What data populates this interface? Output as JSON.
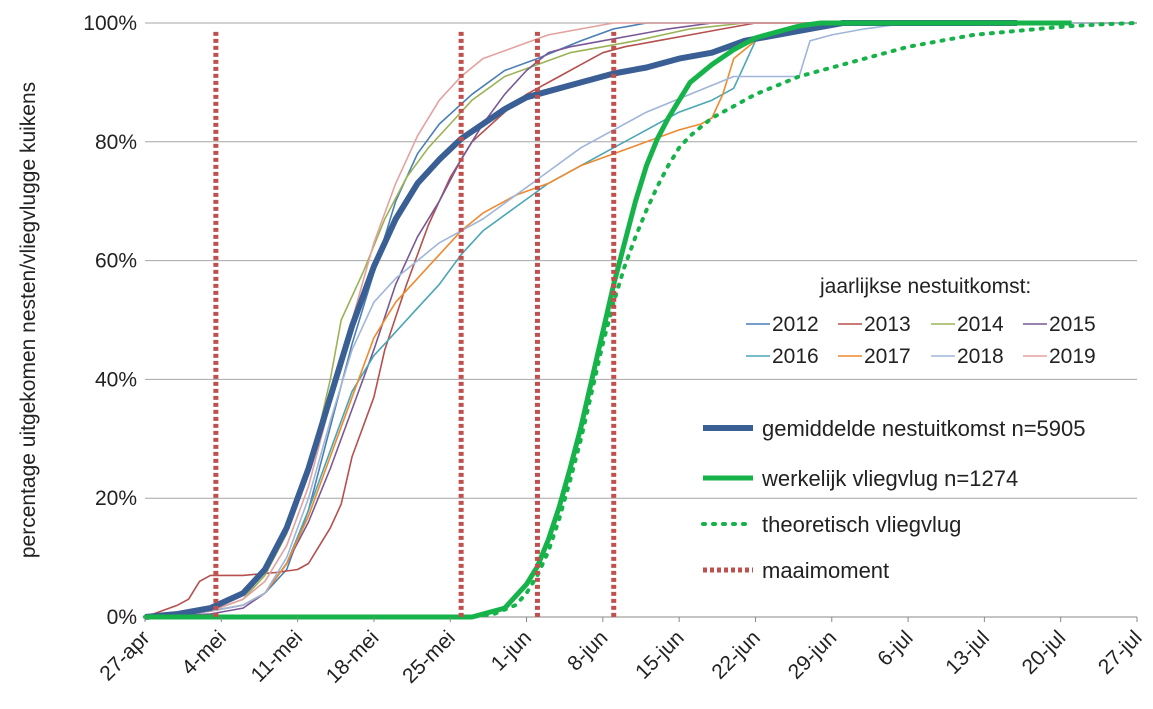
{
  "chart_data": {
    "type": "line",
    "ylabel": "percentage uitgekomen nesten/vliegvlugge kuikens",
    "xlabel": "",
    "x_ticks": [
      "27-apr",
      "4-mei",
      "11-mei",
      "18-mei",
      "25-mei",
      "1-jun",
      "8-jun",
      "15-jun",
      "22-jun",
      "29-jun",
      "6-jul",
      "13-jul",
      "20-jul",
      "27-jul"
    ],
    "y_ticks": [
      "0%",
      "20%",
      "40%",
      "60%",
      "80%",
      "100%"
    ],
    "xlim": [
      0,
      91
    ],
    "ylim": [
      0,
      100
    ],
    "x_unit_note": "",
    "legend_title": "jaarlijkse nestuitkomst:",
    "series": [
      {
        "name": "2012",
        "color": "#4a7eb5",
        "width": 1.6,
        "dash": "",
        "x": [
          0,
          3,
          6,
          9,
          11,
          13,
          15,
          17,
          19,
          21,
          23,
          25,
          27,
          30,
          33,
          36,
          40,
          43,
          46,
          50,
          55,
          60,
          70,
          80
        ],
        "y": [
          0,
          0.3,
          1,
          2,
          4,
          8,
          18,
          32,
          46,
          58,
          70,
          78,
          83,
          88,
          92,
          94,
          97,
          99,
          100,
          100,
          100,
          100,
          100,
          100
        ]
      },
      {
        "name": "2013",
        "color": "#b5504e",
        "width": 1.6,
        "dash": "",
        "x": [
          0,
          3,
          4,
          5,
          6,
          9,
          12,
          14,
          15,
          16,
          17,
          18,
          19,
          21,
          22,
          24,
          26,
          28,
          30,
          33,
          35,
          38,
          40,
          42,
          44,
          47,
          50,
          53,
          56,
          60,
          70,
          80
        ],
        "y": [
          0,
          2,
          3,
          6,
          7,
          7,
          7.5,
          8,
          9,
          12,
          15,
          19,
          27,
          37,
          45,
          56,
          66,
          74,
          80,
          85,
          88,
          91,
          93,
          95,
          96,
          97,
          98,
          99,
          100,
          100,
          100,
          100
        ]
      },
      {
        "name": "2014",
        "color": "#9bb356",
        "width": 1.6,
        "dash": "",
        "x": [
          0,
          3,
          6,
          9,
          11,
          13,
          14,
          16,
          17,
          18,
          20,
          22,
          24,
          26,
          28,
          30,
          33,
          36,
          39,
          42,
          45,
          50,
          55,
          60,
          70,
          80
        ],
        "y": [
          0,
          0.5,
          1,
          3,
          7,
          14,
          20,
          32,
          40,
          50,
          58,
          67,
          74,
          79,
          83,
          87,
          91,
          93,
          95,
          96,
          97,
          99,
          100,
          100,
          100,
          100
        ]
      },
      {
        "name": "2015",
        "color": "#7a5896",
        "width": 1.6,
        "dash": "",
        "x": [
          0,
          3,
          6,
          9,
          11,
          13,
          15,
          17,
          19,
          21,
          23,
          25,
          27,
          29,
          31,
          33,
          35,
          37,
          39,
          42,
          45,
          48,
          52,
          55,
          60,
          70,
          80
        ],
        "y": [
          0,
          0.3,
          0.5,
          1.5,
          4,
          9,
          16,
          25,
          35,
          45,
          56,
          64,
          70,
          77,
          83,
          88,
          92,
          95,
          96,
          97,
          98,
          99,
          100,
          100,
          100,
          100,
          100
        ]
      },
      {
        "name": "2016",
        "color": "#4aa6b5",
        "width": 1.6,
        "dash": "",
        "x": [
          0,
          3,
          6,
          9,
          11,
          13,
          15,
          17,
          19,
          21,
          23,
          25,
          27,
          29,
          31,
          34,
          37,
          40,
          43,
          46,
          49,
          52,
          54,
          55,
          56,
          57,
          60,
          63,
          66,
          70,
          80,
          91
        ],
        "y": [
          0,
          0.3,
          1,
          2,
          4,
          9,
          18,
          28,
          38,
          44,
          48,
          52,
          56,
          61,
          65,
          69,
          73,
          76,
          79,
          82,
          85,
          87,
          89,
          93,
          97,
          98,
          99,
          100,
          100,
          100,
          100,
          100
        ]
      },
      {
        "name": "2017",
        "color": "#ef8a2f",
        "width": 1.6,
        "dash": "",
        "x": [
          0,
          3,
          6,
          9,
          11,
          13,
          15,
          17,
          19,
          21,
          23,
          25,
          27,
          29,
          31,
          34,
          37,
          40,
          43,
          46,
          49,
          51,
          52,
          53,
          54,
          56,
          59,
          62,
          66,
          70,
          80,
          91
        ],
        "y": [
          0,
          0.3,
          1,
          2,
          4,
          9,
          17,
          27,
          37,
          47,
          53,
          57,
          61,
          65,
          68,
          71,
          73,
          76,
          78,
          80,
          82,
          83,
          84,
          88,
          94,
          97,
          99,
          100,
          100,
          100,
          100,
          100
        ]
      },
      {
        "name": "2018",
        "color": "#9fb6d9",
        "width": 1.6,
        "dash": "",
        "x": [
          0,
          3,
          6,
          9,
          11,
          13,
          15,
          17,
          19,
          21,
          23,
          25,
          27,
          29,
          31,
          34,
          37,
          40,
          43,
          46,
          50,
          54,
          57,
          59,
          60,
          61,
          63,
          66,
          70,
          75,
          80,
          91
        ],
        "y": [
          0,
          0.3,
          1,
          2,
          4,
          10,
          20,
          33,
          45,
          53,
          57,
          60,
          63,
          65,
          67,
          71,
          75,
          79,
          82,
          85,
          88,
          91,
          91,
          91,
          91,
          97,
          98,
          99,
          100,
          100,
          100,
          100
        ]
      },
      {
        "name": "2019",
        "color": "#e3a2a0",
        "width": 1.6,
        "dash": "",
        "x": [
          0,
          3,
          6,
          9,
          11,
          13,
          15,
          17,
          19,
          21,
          23,
          25,
          27,
          29,
          31,
          34,
          37,
          40,
          43,
          46,
          50,
          55,
          60,
          70,
          80
        ],
        "y": [
          0,
          0.5,
          1,
          3,
          6,
          12,
          22,
          36,
          50,
          63,
          73,
          81,
          87,
          91,
          94,
          96,
          98,
          99,
          100,
          100,
          100,
          100,
          100,
          100,
          100
        ]
      },
      {
        "name": "gemiddelde nestuitkomst n=5905",
        "color": "#3a5f94",
        "width": 6,
        "dash": "",
        "x": [
          0,
          3,
          6,
          9,
          11,
          13,
          15,
          17,
          19,
          21,
          23,
          25,
          27,
          29,
          31,
          33,
          35,
          37,
          40,
          43,
          46,
          49,
          52,
          55,
          58,
          61,
          64,
          67,
          70,
          80
        ],
        "y": [
          0,
          0.5,
          1.5,
          4,
          8,
          15,
          25,
          37,
          49,
          59,
          67,
          73,
          77,
          80.5,
          83,
          85.5,
          87.5,
          88.5,
          90,
          91.5,
          92.5,
          94,
          95,
          97,
          98,
          99,
          100,
          100,
          100,
          100
        ]
      },
      {
        "name": "werkelijk vliegvlug n=1274",
        "color": "#16b34a",
        "width": 5,
        "dash": "",
        "x": [
          0,
          10,
          20,
          30,
          33,
          34,
          35,
          36,
          37,
          38,
          39,
          40,
          41,
          42,
          43,
          44,
          45,
          46,
          47,
          48,
          49,
          50,
          52,
          54,
          56,
          58,
          60,
          62,
          64,
          67,
          70,
          75,
          80,
          85
        ],
        "y": [
          0,
          0,
          0,
          0,
          1.5,
          3.5,
          5.5,
          8.5,
          13,
          18.5,
          25,
          32,
          40,
          48,
          56,
          63,
          70,
          76,
          80.5,
          84,
          87,
          90,
          93,
          95.5,
          97.5,
          98.5,
          99.5,
          100,
          100,
          100,
          100,
          100,
          100,
          100
        ]
      },
      {
        "name": "theoretisch vliegvlug",
        "color": "#16b34a",
        "width": 4,
        "dash": "2 8",
        "x": [
          0,
          10,
          20,
          30,
          32,
          34,
          35,
          36,
          37,
          38,
          39,
          40,
          41,
          42,
          43,
          44,
          45,
          46,
          47,
          48,
          49,
          50,
          52,
          54,
          56,
          58,
          60,
          62,
          64,
          67,
          70,
          73,
          76,
          79,
          82,
          85,
          88,
          91
        ],
        "y": [
          0,
          0,
          0,
          0,
          0.5,
          2,
          4,
          7,
          11,
          16.5,
          23,
          30,
          38,
          46,
          53,
          59,
          64,
          68.5,
          72.5,
          76,
          79,
          81,
          84,
          86,
          88,
          89.5,
          91,
          92,
          93,
          94.5,
          96,
          97,
          98,
          98.5,
          99,
          99.5,
          99.8,
          100
        ]
      }
    ],
    "mowing_moments": [
      6.5,
      29,
      36,
      43
    ],
    "mowing_label": "maaimoment",
    "mowing_color": "#c0504d"
  }
}
